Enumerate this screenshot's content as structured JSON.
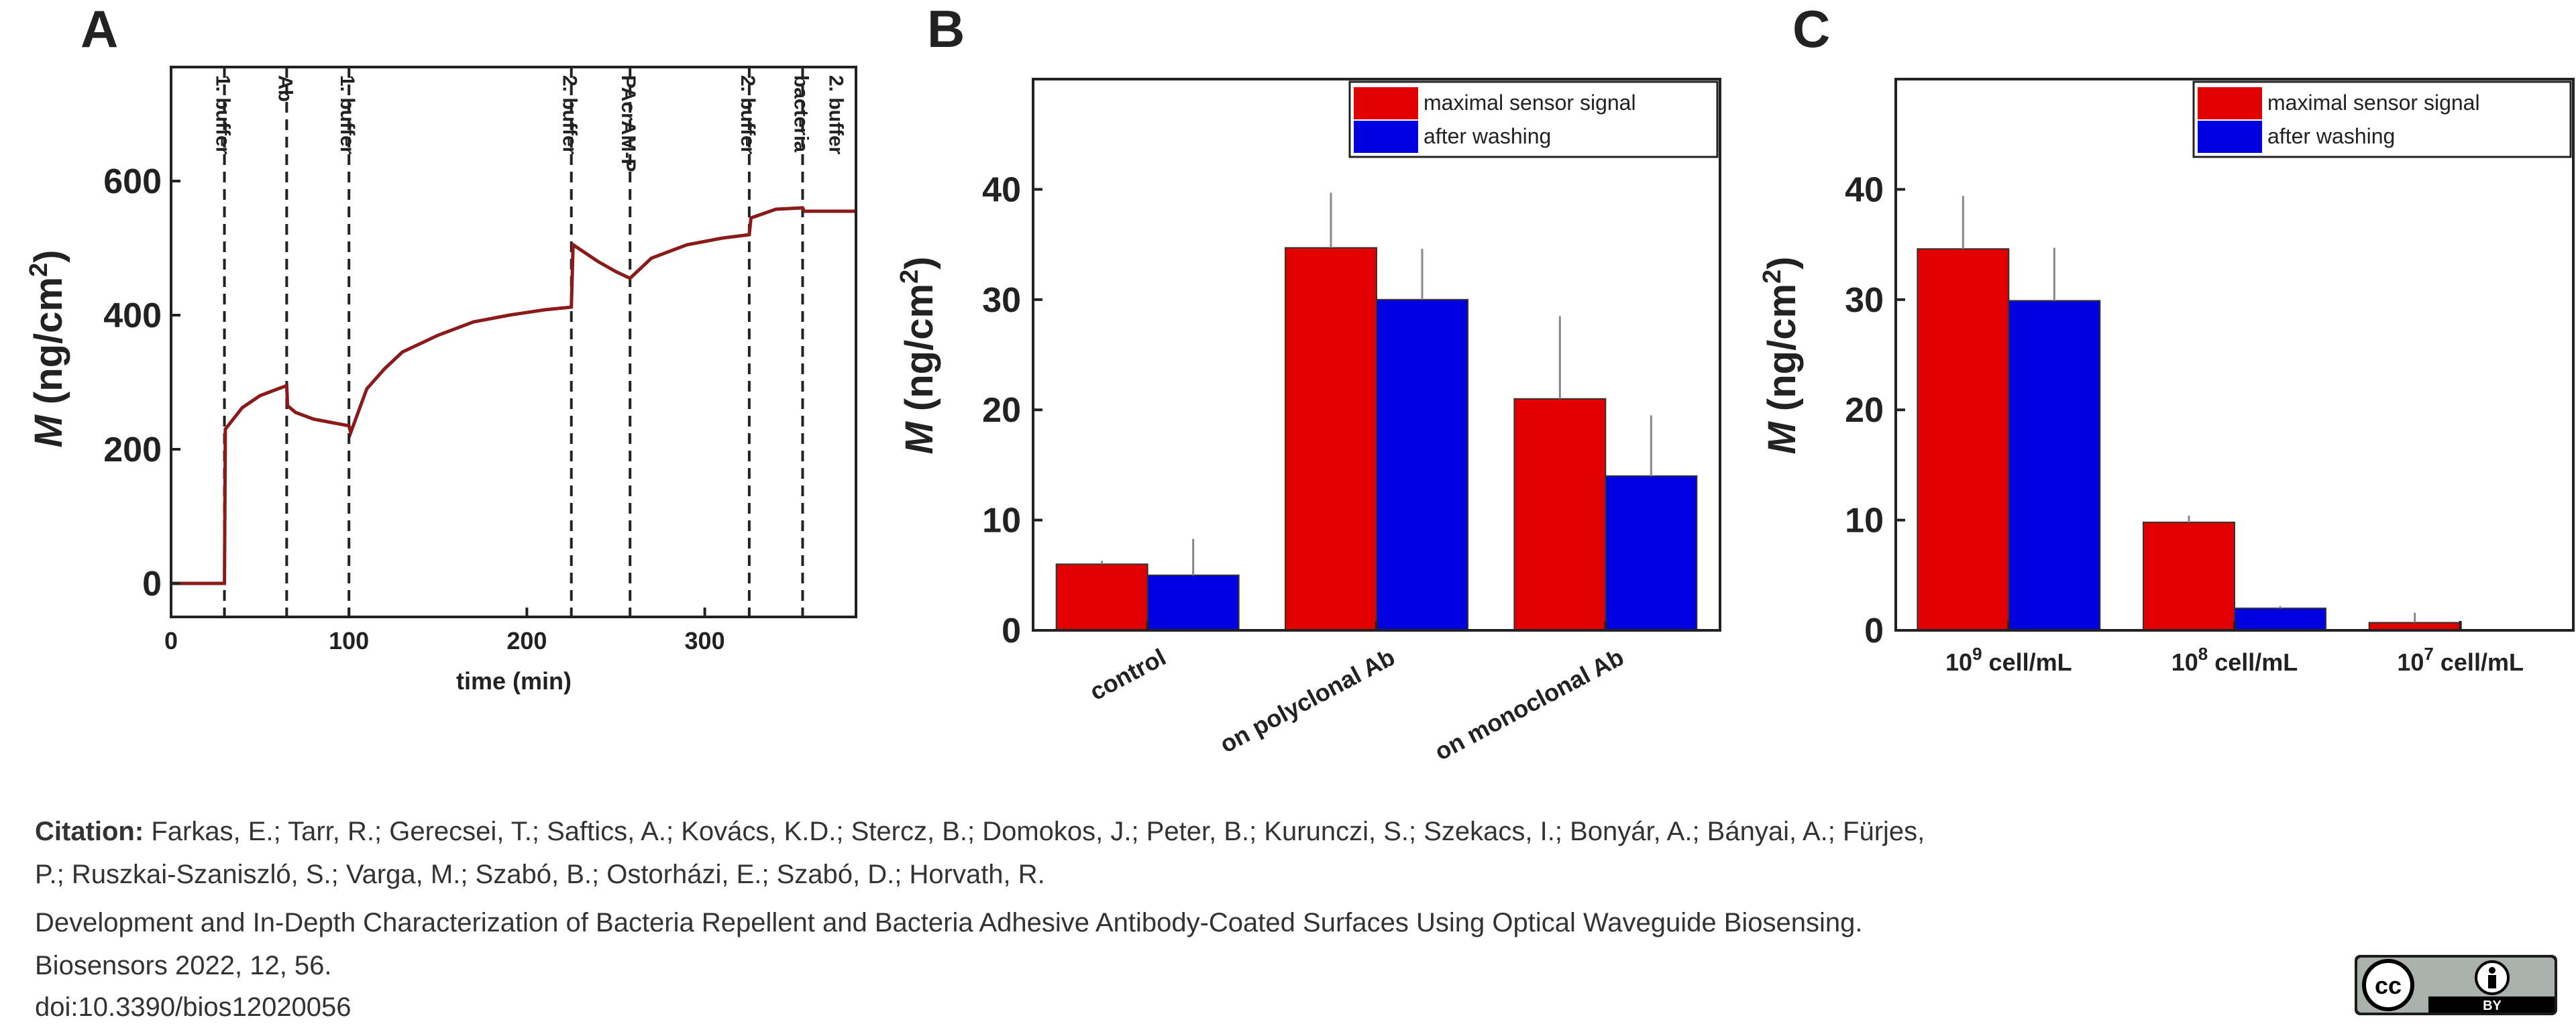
{
  "panels": [
    "A",
    "B",
    "C"
  ],
  "chart_data": [
    {
      "type": "line",
      "panel": "A",
      "xlabel": "time (min)",
      "ylabel": "M (ng/cm2)",
      "xlim": [
        0,
        385
      ],
      "ylim": [
        -50,
        770
      ],
      "xticks": [
        0,
        100,
        200,
        300
      ],
      "yticks": [
        0,
        200,
        400,
        600
      ],
      "line_color": "#8b1a1a",
      "x": [
        0,
        30,
        30.5,
        40,
        50,
        60,
        65,
        65.5,
        70,
        80,
        90,
        100,
        101,
        110,
        120,
        130,
        150,
        170,
        190,
        210,
        225,
        226,
        240,
        250,
        258,
        270,
        290,
        310,
        325,
        326,
        340,
        355,
        356,
        370,
        385
      ],
      "y": [
        0,
        0,
        230,
        262,
        280,
        290,
        295,
        265,
        255,
        245,
        240,
        235,
        225,
        290,
        320,
        345,
        370,
        390,
        400,
        408,
        412,
        505,
        480,
        465,
        455,
        485,
        505,
        515,
        520,
        545,
        558,
        560,
        555,
        555,
        555
      ],
      "events": [
        {
          "x": 30,
          "label": "1. buffer",
          "side": "left"
        },
        {
          "x": 65,
          "label": "Ab",
          "side": "left"
        },
        {
          "x": 100,
          "label": "1. buffer",
          "side": "left"
        },
        {
          "x": 225,
          "label": "2. buffer",
          "side": "left"
        },
        {
          "x": 258,
          "label": "PAcrAM-P",
          "side": "left"
        },
        {
          "x": 325,
          "label": "2. buffer",
          "side": "left"
        },
        {
          "x": 355,
          "label": "bacteria",
          "side": "left"
        },
        {
          "x": 355,
          "label": "2. buffer",
          "side": "right"
        }
      ]
    },
    {
      "type": "bar",
      "panel": "B",
      "ylabel": "M (ng/cm2)",
      "ylim": [
        0,
        50
      ],
      "yticks": [
        0,
        10,
        20,
        30,
        40
      ],
      "categories": [
        "control",
        "on polyclonal Ab",
        "on monoclonal Ab"
      ],
      "series": [
        {
          "name": "maximal sensor signal",
          "color": "#e00000",
          "values": [
            6,
            34.7,
            21
          ],
          "errors": [
            0.3,
            5,
            7.5
          ]
        },
        {
          "name": "after washing",
          "color": "#0000e0",
          "values": [
            5,
            30,
            14
          ],
          "errors": [
            3.3,
            4.6,
            5.5
          ]
        }
      ],
      "legend": "top-right"
    },
    {
      "type": "bar",
      "panel": "C",
      "ylabel": "M (ng/cm2)",
      "ylim": [
        0,
        50
      ],
      "yticks": [
        0,
        10,
        20,
        30,
        40
      ],
      "categories": [
        "10^9 cell/mL",
        "10^8 cell/mL",
        "10^7 cell/mL"
      ],
      "category_labels": [
        {
          "base": "10",
          "exp": "9",
          "unit": " cell/mL"
        },
        {
          "base": "10",
          "exp": "8",
          "unit": " cell/mL"
        },
        {
          "base": "10",
          "exp": "7",
          "unit": " cell/mL"
        }
      ],
      "series": [
        {
          "name": "maximal sensor signal",
          "color": "#e00000",
          "values": [
            34.6,
            9.8,
            0.7
          ],
          "errors": [
            4.8,
            0.6,
            0.9
          ]
        },
        {
          "name": "after washing",
          "color": "#0000e0",
          "values": [
            29.9,
            2,
            0
          ],
          "errors": [
            4.8,
            0.2,
            0
          ]
        }
      ],
      "legend": "top-right"
    }
  ],
  "citation": {
    "label": "Citation:",
    "authors_line1": "Farkas, E.; Tarr, R.; Gerecsei, T.; Saftics, A.; Kovács, K.D.; Stercz, B.; Domokos, J.; Peter, B.; Kurunczi, S.; Szekacs, I.; Bonyár, A.; Bányai, A.; Fürjes,",
    "authors_line2": "P.; Ruszkai-Szaniszló, S.; Varga, M.; Szabó, B.; Ostorházi, E.; Szabó, D.; Horvath, R.",
    "title": "Development and In-Depth Characterization of Bacteria Repellent and Bacteria Adhesive Antibody-Coated Surfaces Using Optical Waveguide Biosensing.",
    "journal": "Biosensors 2022, 12, 56.",
    "doi": "doi:10.3390/bios12020056"
  },
  "license_badge": {
    "icons": [
      "cc-icon",
      "by-icon"
    ],
    "text": "BY"
  }
}
